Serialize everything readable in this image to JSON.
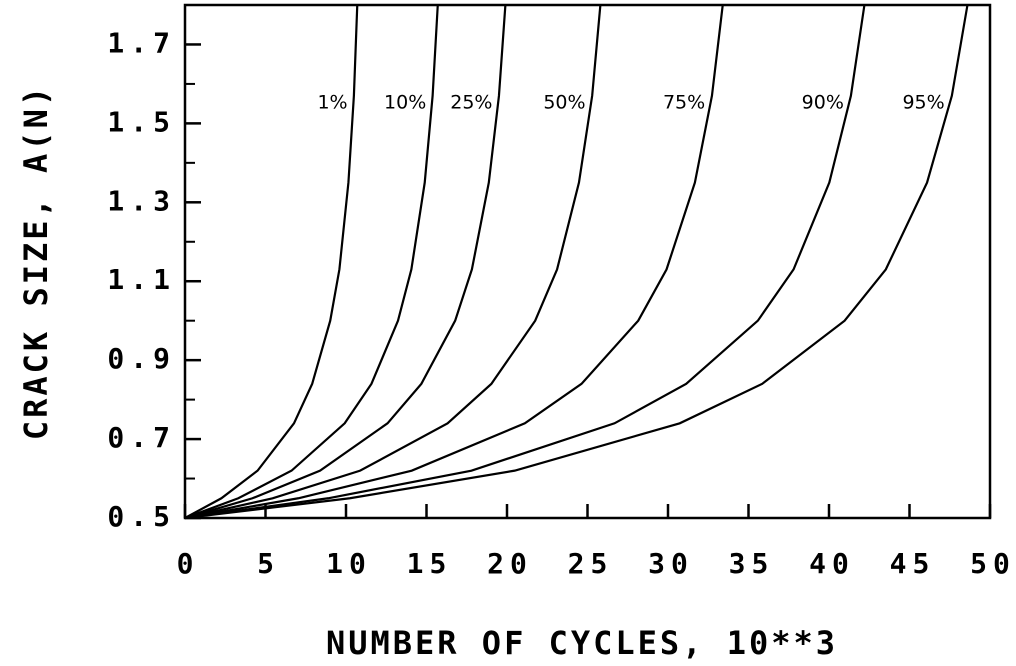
{
  "chart_data": {
    "type": "line",
    "xlabel": "NUMBER OF CYCLES, 10**3",
    "ylabel": "CRACK SIZE, A(N)",
    "xlim": [
      0,
      50
    ],
    "ylim": [
      0.5,
      1.8
    ],
    "xticks": [
      0,
      5,
      10,
      15,
      20,
      25,
      30,
      35,
      40,
      45,
      50
    ],
    "yticks": [
      0.5,
      0.7,
      0.9,
      1.1,
      1.3,
      1.5,
      1.7
    ],
    "y_minor_ticks": [
      0.6,
      0.8,
      1.0,
      1.2,
      1.4,
      1.6
    ],
    "color": "#000000",
    "series": [
      {
        "name": "1%",
        "x": [
          0,
          2.26,
          4.51,
          6.77,
          7.9,
          9.02,
          9.59,
          10.15,
          10.49,
          10.7
        ],
        "values": [
          0.5,
          0.55,
          0.62,
          0.74,
          0.84,
          1.0,
          1.13,
          1.35,
          1.57,
          1.8
        ]
      },
      {
        "name": "10%",
        "x": [
          0,
          3.31,
          6.62,
          9.92,
          11.58,
          13.23,
          14.06,
          14.89,
          15.38,
          15.7
        ],
        "values": [
          0.5,
          0.55,
          0.62,
          0.74,
          0.84,
          1.0,
          1.13,
          1.35,
          1.57,
          1.8
        ]
      },
      {
        "name": "25%",
        "x": [
          0,
          4.19,
          8.39,
          12.58,
          14.68,
          16.78,
          17.82,
          18.87,
          19.5,
          19.9
        ],
        "values": [
          0.5,
          0.55,
          0.62,
          0.74,
          0.84,
          1.0,
          1.13,
          1.35,
          1.57,
          1.8
        ]
      },
      {
        "name": "50%",
        "x": [
          0,
          5.44,
          10.88,
          16.31,
          19.03,
          21.75,
          23.11,
          24.47,
          25.29,
          25.8
        ],
        "values": [
          0.5,
          0.55,
          0.62,
          0.74,
          0.84,
          1.0,
          1.13,
          1.35,
          1.57,
          1.8
        ]
      },
      {
        "name": "75%",
        "x": [
          0,
          7.04,
          14.08,
          21.11,
          24.63,
          28.15,
          29.91,
          31.67,
          32.73,
          33.4
        ],
        "values": [
          0.5,
          0.55,
          0.62,
          0.74,
          0.84,
          1.0,
          1.13,
          1.35,
          1.57,
          1.8
        ]
      },
      {
        "name": "90%",
        "x": [
          0,
          8.89,
          17.79,
          26.68,
          31.13,
          35.58,
          37.8,
          40.02,
          41.36,
          42.2
        ],
        "values": [
          0.5,
          0.55,
          0.62,
          0.74,
          0.84,
          1.0,
          1.13,
          1.35,
          1.57,
          1.8
        ]
      },
      {
        "name": "95%",
        "x": [
          0,
          10.24,
          20.48,
          30.73,
          35.85,
          40.97,
          43.53,
          46.09,
          47.63,
          48.6
        ],
        "values": [
          0.5,
          0.55,
          0.62,
          0.74,
          0.84,
          1.0,
          1.13,
          1.35,
          1.57,
          1.8
        ]
      }
    ]
  }
}
